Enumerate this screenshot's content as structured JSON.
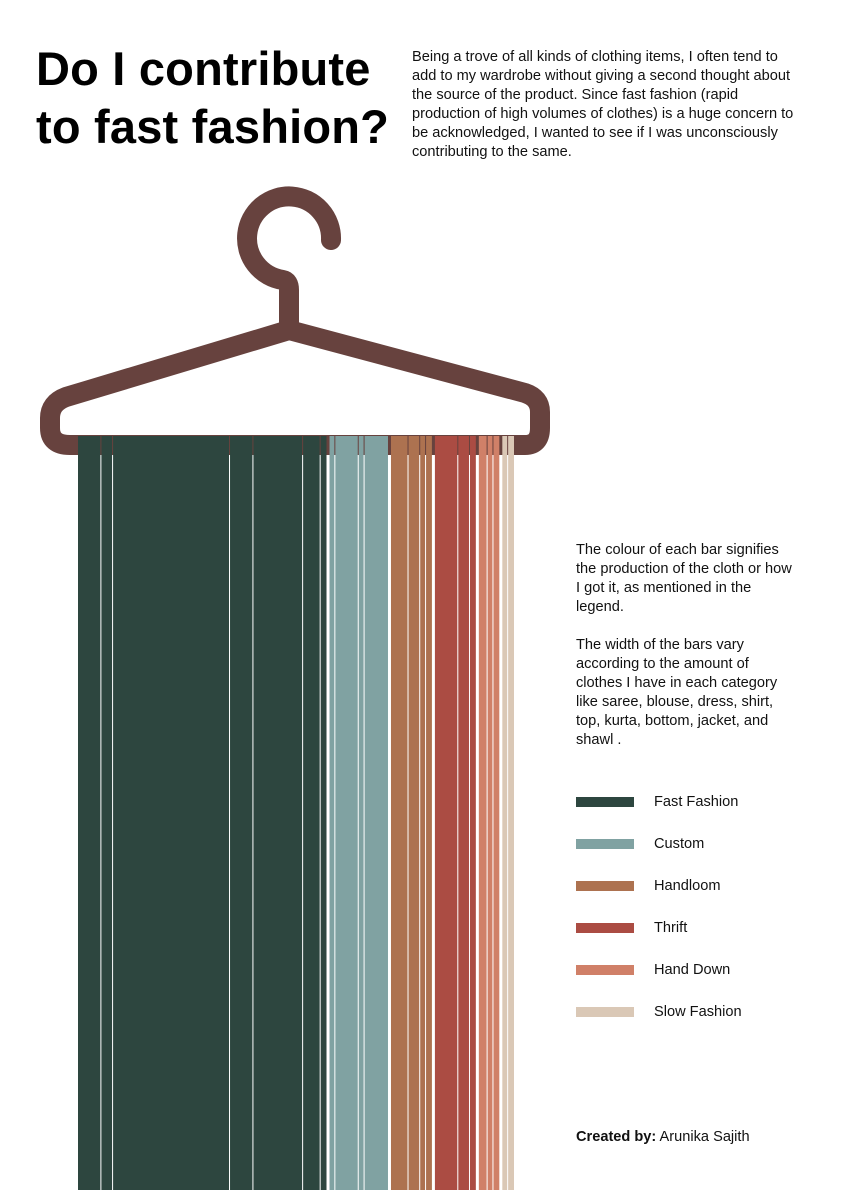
{
  "header": {
    "title_line1": "Do I contribute",
    "title_line2": "to fast fashion?",
    "intro": "Being a trove of all kinds of clothing items, I often tend to add to my wardrobe without giving a second thought about the source of the product. Since fast fashion (rapid production of high volumes of clothes) is a huge concern to be acknowledged, I wanted to see if I was unconsciously contributing to the same."
  },
  "notes": {
    "colour": "The colour of each bar signifies the production of the cloth or how I got it, as mentioned in the legend.",
    "width": "The width of the bars vary according to the amount of clothes I have in each category like saree, blouse, dress, shirt, top, kurta, bottom, jacket, and shawl ."
  },
  "credit": {
    "label": "Created by:",
    "name": "Arunika Sajith"
  },
  "hanger_color": "#67423e",
  "chart_data": {
    "type": "bar",
    "subtype": "proportional-width stacked strips hanging from a hanger",
    "legend_placement": "right",
    "series": [
      {
        "name": "Fast Fashion",
        "color": "#2d463f",
        "values": [
          8,
          4,
          40,
          8,
          17,
          6,
          2
        ]
      },
      {
        "name": "Custom",
        "color": "#80a2a2",
        "values": [
          2,
          8,
          2,
          8
        ]
      },
      {
        "name": "Handloom",
        "color": "#ad7250",
        "values": [
          6,
          4,
          2,
          2
        ]
      },
      {
        "name": "Thrift",
        "color": "#ab4c43",
        "values": [
          8,
          4,
          2
        ]
      },
      {
        "name": "Hand Down",
        "color": "#d08068",
        "values": [
          3,
          2,
          2
        ]
      },
      {
        "name": "Slow Fashion",
        "color": "#dac8b6",
        "values": [
          2,
          2
        ]
      }
    ]
  }
}
